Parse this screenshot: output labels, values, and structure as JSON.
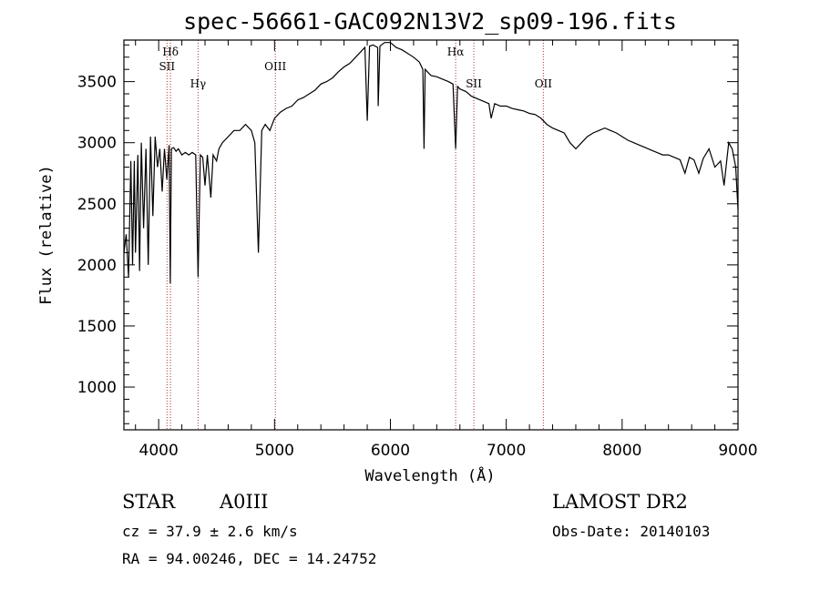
{
  "chart_data": {
    "type": "line",
    "title": "spec-56661-GAC092N13V2_sp09-196.fits",
    "xlabel": "Wavelength (Å)",
    "ylabel": "Flux (relative)",
    "xlim": [
      3700,
      9000
    ],
    "ylim": [
      650,
      3840
    ],
    "x_ticks": [
      4000,
      5000,
      6000,
      7000,
      8000,
      9000
    ],
    "y_ticks": [
      1000,
      1500,
      2000,
      2500,
      3000,
      3500
    ],
    "grid": false,
    "series": [
      {
        "color": "#000000",
        "points": [
          [
            3700,
            2100
          ],
          [
            3720,
            2250
          ],
          [
            3740,
            1900
          ],
          [
            3760,
            2850
          ],
          [
            3775,
            2000
          ],
          [
            3790,
            2850
          ],
          [
            3800,
            2100
          ],
          [
            3820,
            2900
          ],
          [
            3835,
            1950
          ],
          [
            3850,
            3000
          ],
          [
            3870,
            2300
          ],
          [
            3890,
            2950
          ],
          [
            3910,
            2000
          ],
          [
            3930,
            3050
          ],
          [
            3950,
            2400
          ],
          [
            3970,
            3050
          ],
          [
            3990,
            2800
          ],
          [
            4010,
            2950
          ],
          [
            4030,
            2600
          ],
          [
            4050,
            2950
          ],
          [
            4070,
            2700
          ],
          [
            4090,
            2980
          ],
          [
            4100,
            1850
          ],
          [
            4110,
            2950
          ],
          [
            4130,
            2960
          ],
          [
            4150,
            2930
          ],
          [
            4170,
            2950
          ],
          [
            4200,
            2900
          ],
          [
            4230,
            2920
          ],
          [
            4260,
            2900
          ],
          [
            4290,
            2920
          ],
          [
            4320,
            2900
          ],
          [
            4340,
            1900
          ],
          [
            4360,
            2900
          ],
          [
            4380,
            2880
          ],
          [
            4400,
            2650
          ],
          [
            4420,
            2900
          ],
          [
            4450,
            2550
          ],
          [
            4470,
            2900
          ],
          [
            4500,
            2850
          ],
          [
            4520,
            2950
          ],
          [
            4550,
            3000
          ],
          [
            4600,
            3050
          ],
          [
            4650,
            3100
          ],
          [
            4700,
            3100
          ],
          [
            4750,
            3150
          ],
          [
            4800,
            3100
          ],
          [
            4830,
            3000
          ],
          [
            4861,
            2100
          ],
          [
            4890,
            3100
          ],
          [
            4920,
            3150
          ],
          [
            4960,
            3100
          ],
          [
            5000,
            3200
          ],
          [
            5050,
            3250
          ],
          [
            5100,
            3280
          ],
          [
            5150,
            3300
          ],
          [
            5200,
            3350
          ],
          [
            5250,
            3370
          ],
          [
            5300,
            3400
          ],
          [
            5350,
            3430
          ],
          [
            5400,
            3480
          ],
          [
            5450,
            3500
          ],
          [
            5500,
            3530
          ],
          [
            5550,
            3580
          ],
          [
            5600,
            3620
          ],
          [
            5650,
            3650
          ],
          [
            5700,
            3700
          ],
          [
            5750,
            3750
          ],
          [
            5780,
            3780
          ],
          [
            5800,
            3180
          ],
          [
            5820,
            3790
          ],
          [
            5850,
            3800
          ],
          [
            5890,
            3780
          ],
          [
            5895,
            3300
          ],
          [
            5910,
            3790
          ],
          [
            5950,
            3820
          ],
          [
            6000,
            3820
          ],
          [
            6050,
            3780
          ],
          [
            6100,
            3760
          ],
          [
            6150,
            3730
          ],
          [
            6200,
            3700
          ],
          [
            6250,
            3660
          ],
          [
            6280,
            3600
          ],
          [
            6290,
            2950
          ],
          [
            6300,
            3600
          ],
          [
            6350,
            3550
          ],
          [
            6400,
            3540
          ],
          [
            6450,
            3520
          ],
          [
            6500,
            3500
          ],
          [
            6540,
            3480
          ],
          [
            6563,
            2950
          ],
          [
            6580,
            3460
          ],
          [
            6600,
            3440
          ],
          [
            6650,
            3420
          ],
          [
            6700,
            3380
          ],
          [
            6750,
            3360
          ],
          [
            6800,
            3340
          ],
          [
            6850,
            3320
          ],
          [
            6870,
            3200
          ],
          [
            6900,
            3320
          ],
          [
            6950,
            3300
          ],
          [
            7000,
            3300
          ],
          [
            7050,
            3280
          ],
          [
            7100,
            3270
          ],
          [
            7150,
            3260
          ],
          [
            7200,
            3240
          ],
          [
            7250,
            3230
          ],
          [
            7300,
            3200
          ],
          [
            7350,
            3150
          ],
          [
            7400,
            3120
          ],
          [
            7450,
            3100
          ],
          [
            7500,
            3080
          ],
          [
            7550,
            3000
          ],
          [
            7600,
            2950
          ],
          [
            7650,
            3000
          ],
          [
            7700,
            3050
          ],
          [
            7750,
            3080
          ],
          [
            7800,
            3100
          ],
          [
            7850,
            3120
          ],
          [
            7900,
            3100
          ],
          [
            7950,
            3080
          ],
          [
            8000,
            3050
          ],
          [
            8050,
            3020
          ],
          [
            8100,
            3000
          ],
          [
            8150,
            2980
          ],
          [
            8200,
            2960
          ],
          [
            8250,
            2940
          ],
          [
            8300,
            2920
          ],
          [
            8350,
            2900
          ],
          [
            8400,
            2900
          ],
          [
            8450,
            2880
          ],
          [
            8500,
            2860
          ],
          [
            8542,
            2750
          ],
          [
            8580,
            2880
          ],
          [
            8620,
            2860
          ],
          [
            8662,
            2750
          ],
          [
            8700,
            2870
          ],
          [
            8750,
            2950
          ],
          [
            8800,
            2800
          ],
          [
            8850,
            2850
          ],
          [
            8880,
            2650
          ],
          [
            8920,
            3000
          ],
          [
            8950,
            2950
          ],
          [
            8980,
            2800
          ],
          [
            9000,
            2450
          ]
        ]
      }
    ],
    "line_markers": [
      {
        "label": "Hδ",
        "x": 4102,
        "row": 1
      },
      {
        "label": "SII",
        "x": 4072,
        "row": 2
      },
      {
        "label": "Hγ",
        "x": 4340,
        "row": 3
      },
      {
        "label": "OIII",
        "x": 5007,
        "row": 2
      },
      {
        "label": "Hα",
        "x": 6563,
        "row": 1
      },
      {
        "label": "OII",
        "x": 7320,
        "row": 3
      },
      {
        "label": "SII",
        "x": 6720,
        "row": 3
      }
    ]
  },
  "info": {
    "object_type": "STAR",
    "subclass": "A0III",
    "survey": "LAMOST DR2",
    "redshift": "cz = 37.9 ± 2.6 km/s",
    "obs_date": "Obs-Date: 20140103",
    "coords": "RA =  94.00246, DEC =  14.24752"
  }
}
